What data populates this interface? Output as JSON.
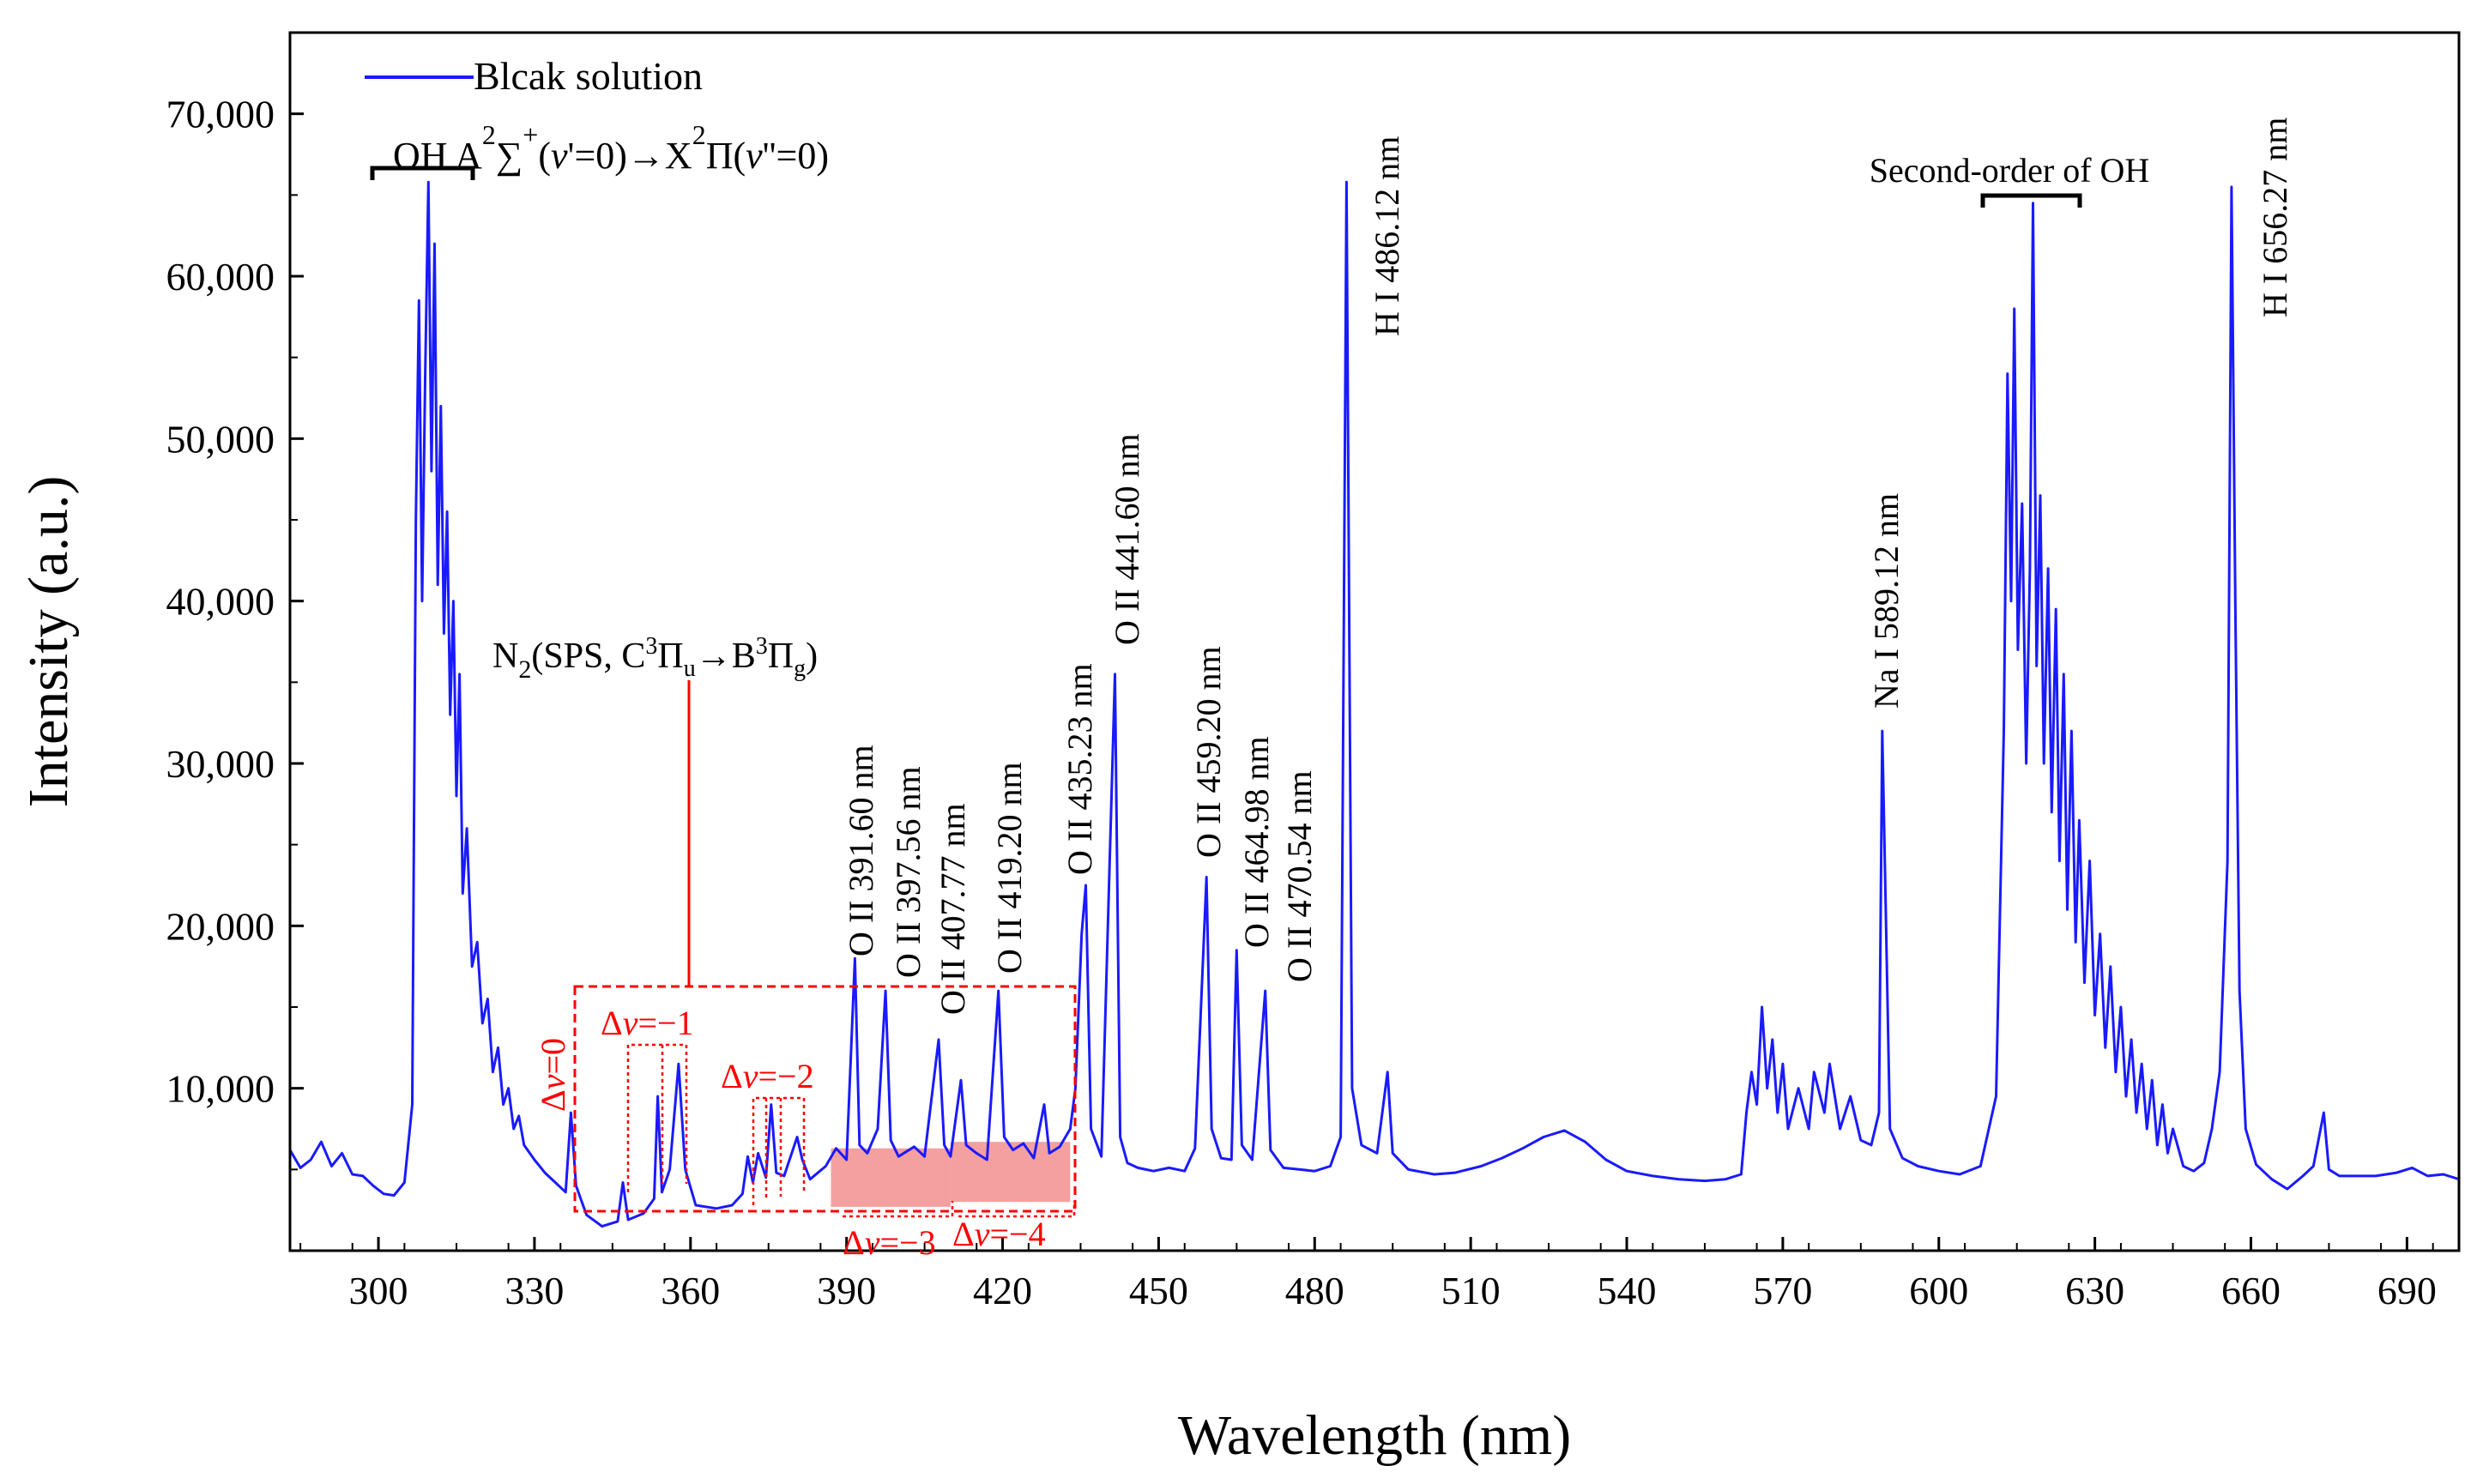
{
  "chart_data": {
    "type": "line",
    "title": "",
    "xlabel": "Wavelength (nm)",
    "ylabel": "Intensity (a.u.)",
    "xlim": [
      283,
      700
    ],
    "ylim": [
      0,
      75000
    ],
    "x_ticks": [
      300,
      330,
      360,
      390,
      420,
      450,
      480,
      510,
      540,
      570,
      600,
      630,
      660,
      690
    ],
    "x_tick_labels": [
      "300",
      "330",
      "360",
      "390",
      "420",
      "450",
      "480",
      "510",
      "540",
      "570",
      "600",
      "630",
      "660",
      "690"
    ],
    "y_ticks": [
      10000,
      20000,
      30000,
      40000,
      50000,
      60000,
      70000
    ],
    "y_tick_labels": [
      "10,000",
      "20,000",
      "30,000",
      "40,000",
      "50,000",
      "60,000",
      "70,000"
    ],
    "grid": false,
    "legend": {
      "position": "top-left",
      "entries": [
        "Blcak solution"
      ]
    },
    "series": [
      {
        "name": "Blcak solution",
        "color": "#1a1aff",
        "points": [
          [
            283,
            6200
          ],
          [
            285,
            5100
          ],
          [
            287,
            5600
          ],
          [
            289,
            6700
          ],
          [
            291,
            5200
          ],
          [
            293,
            6000
          ],
          [
            295,
            4700
          ],
          [
            297,
            4600
          ],
          [
            299,
            4000
          ],
          [
            301,
            3500
          ],
          [
            303,
            3400
          ],
          [
            305,
            4200
          ],
          [
            306.5,
            9000
          ],
          [
            307.2,
            45000
          ],
          [
            307.8,
            58500
          ],
          [
            308.4,
            40000
          ],
          [
            309,
            54000
          ],
          [
            309.6,
            65800
          ],
          [
            310.2,
            48000
          ],
          [
            310.8,
            62000
          ],
          [
            311.4,
            41000
          ],
          [
            312,
            52000
          ],
          [
            312.6,
            38000
          ],
          [
            313.2,
            45500
          ],
          [
            313.8,
            33000
          ],
          [
            314.4,
            40000
          ],
          [
            315,
            28000
          ],
          [
            315.6,
            35500
          ],
          [
            316.2,
            22000
          ],
          [
            317,
            26000
          ],
          [
            318,
            17500
          ],
          [
            319,
            19000
          ],
          [
            320,
            14000
          ],
          [
            321,
            15500
          ],
          [
            322,
            11000
          ],
          [
            323,
            12500
          ],
          [
            324,
            9000
          ],
          [
            325,
            10000
          ],
          [
            326,
            7500
          ],
          [
            327,
            8300
          ],
          [
            328,
            6500
          ],
          [
            330,
            5600
          ],
          [
            332,
            4800
          ],
          [
            334,
            4200
          ],
          [
            336,
            3600
          ],
          [
            337,
            8500
          ],
          [
            338,
            4000
          ],
          [
            340,
            2200
          ],
          [
            343,
            1500
          ],
          [
            346,
            1800
          ],
          [
            347,
            4200
          ],
          [
            348,
            1900
          ],
          [
            351,
            2300
          ],
          [
            353,
            3200
          ],
          [
            353.7,
            9500
          ],
          [
            354.5,
            3600
          ],
          [
            356,
            5000
          ],
          [
            357.7,
            11500
          ],
          [
            359,
            5000
          ],
          [
            361,
            2800
          ],
          [
            365,
            2600
          ],
          [
            368,
            2800
          ],
          [
            370,
            3500
          ],
          [
            371,
            5800
          ],
          [
            372,
            4200
          ],
          [
            373,
            6000
          ],
          [
            374.5,
            4500
          ],
          [
            375.5,
            9000
          ],
          [
            376.5,
            4800
          ],
          [
            378,
            4600
          ],
          [
            380.5,
            7000
          ],
          [
            381.5,
            5600
          ],
          [
            383,
            4400
          ],
          [
            386,
            5200
          ],
          [
            388,
            6300
          ],
          [
            390,
            5600
          ],
          [
            391.6,
            18000
          ],
          [
            392.5,
            6500
          ],
          [
            394,
            6000
          ],
          [
            396,
            7500
          ],
          [
            397.5,
            16000
          ],
          [
            398.5,
            6800
          ],
          [
            400,
            5800
          ],
          [
            403,
            6400
          ],
          [
            405,
            5800
          ],
          [
            407.7,
            13000
          ],
          [
            408.8,
            6500
          ],
          [
            410,
            5800
          ],
          [
            412,
            10500
          ],
          [
            413,
            6500
          ],
          [
            415,
            6000
          ],
          [
            417,
            5600
          ],
          [
            419.2,
            16000
          ],
          [
            420.3,
            7000
          ],
          [
            422,
            6200
          ],
          [
            424,
            6600
          ],
          [
            426,
            5700
          ],
          [
            428,
            9000
          ],
          [
            429,
            6000
          ],
          [
            431,
            6400
          ],
          [
            433,
            7500
          ],
          [
            434,
            10000
          ],
          [
            435.2,
            19500
          ],
          [
            436,
            22500
          ],
          [
            437,
            7500
          ],
          [
            439,
            5800
          ],
          [
            441.6,
            35500
          ],
          [
            442.6,
            7000
          ],
          [
            444,
            5400
          ],
          [
            446,
            5100
          ],
          [
            449,
            4900
          ],
          [
            452,
            5100
          ],
          [
            455,
            4900
          ],
          [
            457,
            6300
          ],
          [
            459.2,
            23000
          ],
          [
            460.2,
            7500
          ],
          [
            462,
            5700
          ],
          [
            464,
            5600
          ],
          [
            465,
            18500
          ],
          [
            466,
            6500
          ],
          [
            468,
            5600
          ],
          [
            470.5,
            16000
          ],
          [
            471.5,
            6200
          ],
          [
            474,
            5100
          ],
          [
            477,
            5000
          ],
          [
            480,
            4900
          ],
          [
            483,
            5200
          ],
          [
            485,
            7000
          ],
          [
            486.12,
            65800
          ],
          [
            487.2,
            10000
          ],
          [
            489,
            6500
          ],
          [
            492,
            6000
          ],
          [
            494,
            11000
          ],
          [
            495,
            6000
          ],
          [
            498,
            5000
          ],
          [
            503,
            4700
          ],
          [
            507,
            4800
          ],
          [
            512,
            5200
          ],
          [
            516,
            5700
          ],
          [
            520,
            6300
          ],
          [
            524,
            7000
          ],
          [
            528,
            7400
          ],
          [
            532,
            6700
          ],
          [
            536,
            5600
          ],
          [
            540,
            4900
          ],
          [
            545,
            4600
          ],
          [
            550,
            4400
          ],
          [
            555,
            4300
          ],
          [
            559,
            4400
          ],
          [
            562,
            4700
          ],
          [
            563,
            8500
          ],
          [
            564,
            11000
          ],
          [
            565,
            9000
          ],
          [
            566,
            15000
          ],
          [
            567,
            10000
          ],
          [
            568,
            13000
          ],
          [
            569,
            8500
          ],
          [
            570,
            11500
          ],
          [
            571,
            7500
          ],
          [
            573,
            10000
          ],
          [
            575,
            7500
          ],
          [
            576,
            11000
          ],
          [
            578,
            8500
          ],
          [
            579,
            11500
          ],
          [
            581,
            7500
          ],
          [
            583,
            9500
          ],
          [
            585,
            6800
          ],
          [
            587,
            6500
          ],
          [
            588.5,
            8500
          ],
          [
            589.12,
            32000
          ],
          [
            589.8,
            21000
          ],
          [
            590.6,
            7500
          ],
          [
            593,
            5700
          ],
          [
            596,
            5200
          ],
          [
            600,
            4900
          ],
          [
            604,
            4700
          ],
          [
            608,
            5200
          ],
          [
            611,
            9500
          ],
          [
            612.5,
            32000
          ],
          [
            613.2,
            54000
          ],
          [
            613.9,
            40000
          ],
          [
            614.5,
            58000
          ],
          [
            615.2,
            37000
          ],
          [
            616,
            46000
          ],
          [
            616.8,
            30000
          ],
          [
            617.5,
            42000
          ],
          [
            618.1,
            64500
          ],
          [
            618.8,
            36000
          ],
          [
            619.5,
            46500
          ],
          [
            620.2,
            30000
          ],
          [
            621,
            42000
          ],
          [
            621.7,
            27000
          ],
          [
            622.5,
            39500
          ],
          [
            623.2,
            24000
          ],
          [
            624,
            35500
          ],
          [
            624.7,
            21000
          ],
          [
            625.5,
            32000
          ],
          [
            626.3,
            19000
          ],
          [
            627,
            26500
          ],
          [
            628,
            16500
          ],
          [
            629,
            24000
          ],
          [
            630,
            14500
          ],
          [
            631,
            19500
          ],
          [
            632,
            12500
          ],
          [
            633,
            17500
          ],
          [
            634,
            11000
          ],
          [
            635,
            15000
          ],
          [
            636,
            9500
          ],
          [
            637,
            13000
          ],
          [
            638,
            8500
          ],
          [
            639,
            11500
          ],
          [
            640,
            7500
          ],
          [
            641,
            10500
          ],
          [
            642,
            6500
          ],
          [
            643,
            9000
          ],
          [
            644,
            6000
          ],
          [
            645,
            7500
          ],
          [
            647,
            5200
          ],
          [
            649,
            4900
          ],
          [
            651,
            5400
          ],
          [
            652.5,
            7500
          ],
          [
            654,
            11000
          ],
          [
            655.5,
            24000
          ],
          [
            656.27,
            65500
          ],
          [
            657,
            40000
          ],
          [
            657.8,
            16000
          ],
          [
            659,
            7500
          ],
          [
            661,
            5300
          ],
          [
            664,
            4400
          ],
          [
            667,
            3800
          ],
          [
            670,
            4600
          ],
          [
            672,
            5200
          ],
          [
            674,
            8500
          ],
          [
            675,
            5000
          ],
          [
            677,
            4600
          ],
          [
            680,
            4600
          ],
          [
            684,
            4600
          ],
          [
            688,
            4800
          ],
          [
            691,
            5100
          ],
          [
            694,
            4600
          ],
          [
            697,
            4700
          ],
          [
            700,
            4400
          ]
        ]
      }
    ],
    "annotations": [
      {
        "text": "Blcak solution"
      },
      {
        "text": "OH A²Σ⁺(v′=0)→X²Π(v″=0)"
      },
      {
        "text": "N₂(SPS, C³Πu→B³Πg)"
      },
      {
        "text": "Δv=0"
      },
      {
        "text": "Δv=−1"
      },
      {
        "text": "Δv=−2"
      },
      {
        "text": "Δv=−3"
      },
      {
        "text": "Δv=−4"
      },
      {
        "text": "O II 391.60 nm"
      },
      {
        "text": "O II 397.56 nm"
      },
      {
        "text": "O II 407.77 nm"
      },
      {
        "text": "O II 419.20 nm"
      },
      {
        "text": "O II 435.23 nm"
      },
      {
        "text": "O II 441.60 nm"
      },
      {
        "text": "O II 459.20 nm"
      },
      {
        "text": "O II 464.98 nm"
      },
      {
        "text": "O II 470.54 nm"
      },
      {
        "text": "H I 486.12 nm"
      },
      {
        "text": "Na I 589.12 nm"
      },
      {
        "text": "Second-order of OH"
      },
      {
        "text": "H I 656.27 nm"
      }
    ],
    "accent_colors": {
      "series": "#1a1aff",
      "n2_annotation": "#ff0000",
      "shade": "#f08080",
      "axis": "#000000"
    }
  }
}
